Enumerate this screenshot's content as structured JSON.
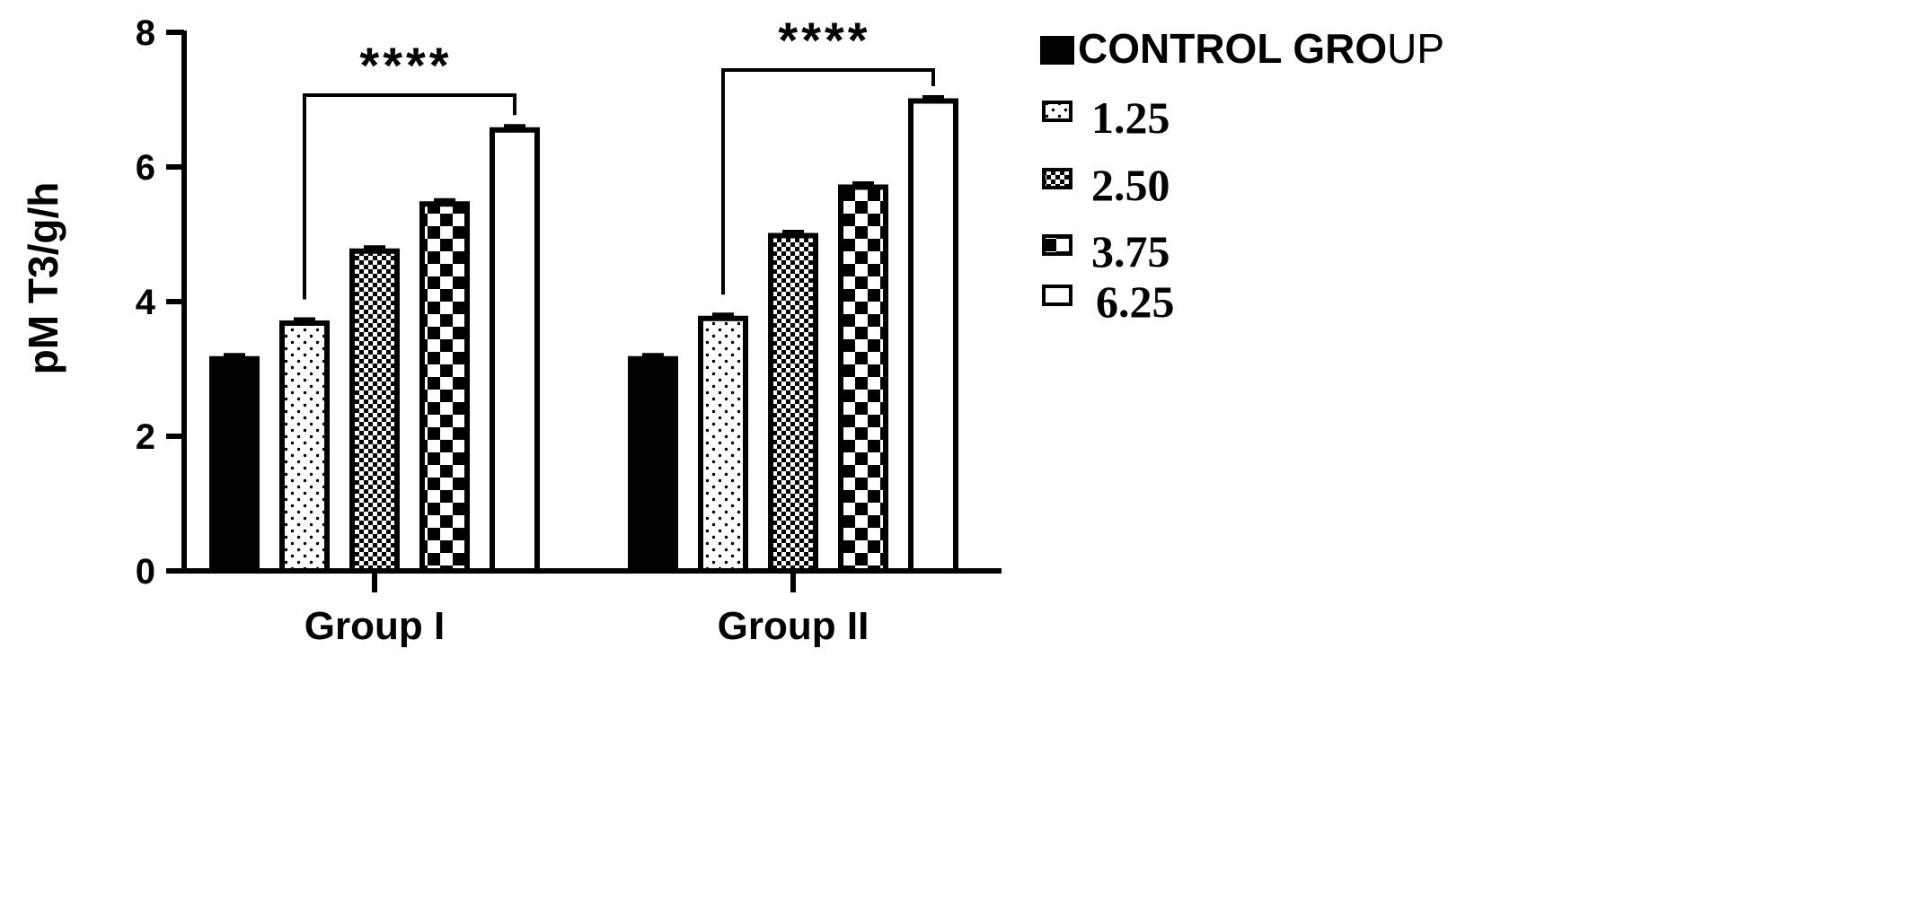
{
  "chart_data": {
    "type": "bar",
    "ylabel": "pM T3/g/h",
    "xlabel": "",
    "ylim": [
      0,
      8
    ],
    "yticks": [
      0,
      2,
      4,
      6,
      8
    ],
    "grid": false,
    "legend_position": "right",
    "categories": [
      "Group I",
      "Group II"
    ],
    "series": [
      {
        "name": "CONTROL GROUP",
        "name_bold_part": "CONTROL GRO",
        "name_plain_part": "UP",
        "pattern": "solid",
        "values": [
          3.15,
          3.15
        ],
        "errors": [
          0.06,
          0.06
        ]
      },
      {
        "name": "1.25",
        "pattern": "dots",
        "values": [
          3.68,
          3.75
        ],
        "errors": [
          0.06,
          0.06
        ]
      },
      {
        "name": "2.50",
        "pattern": "fine-check",
        "values": [
          4.75,
          4.98
        ],
        "errors": [
          0.06,
          0.06
        ]
      },
      {
        "name": "3.75",
        "pattern": "coarse-check",
        "values": [
          5.45,
          5.7
        ],
        "errors": [
          0.06,
          0.06
        ]
      },
      {
        "name": "6.25",
        "pattern": "open",
        "values": [
          6.55,
          6.98
        ],
        "errors": [
          0.06,
          0.06
        ]
      }
    ],
    "annotations": [
      {
        "category": "Group I",
        "from_series": 1,
        "to_series": 4,
        "text": "****"
      },
      {
        "category": "Group II",
        "from_series": 1,
        "to_series": 4,
        "text": "****"
      }
    ],
    "colors": {
      "bar_fill": "#000000",
      "bar_stroke": "#000000",
      "background": "#ffffff"
    }
  }
}
